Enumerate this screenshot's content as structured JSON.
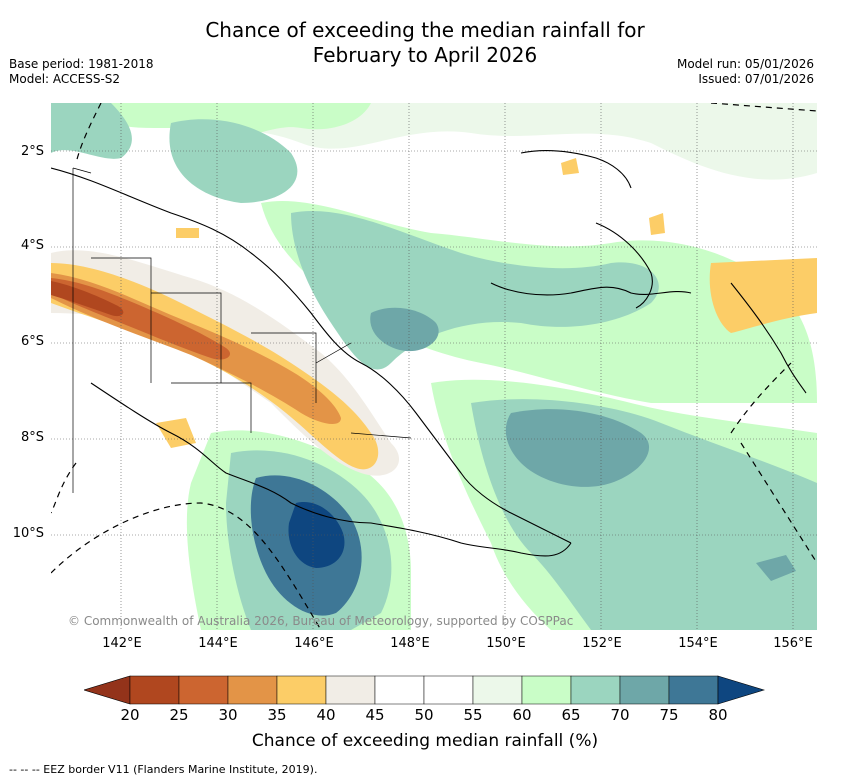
{
  "header": {
    "title_line1": "Chance of exceeding the median rainfall for",
    "title_line2": "February to April 2026",
    "base_period": "Base period: 1981-2018",
    "model": "Model: ACCESS-S2",
    "model_run": "Model run: 05/01/2026",
    "issued": "Issued: 07/01/2026"
  },
  "map": {
    "lat_labels": [
      "2°S",
      "4°S",
      "6°S",
      "8°S",
      "10°S"
    ],
    "lon_labels": [
      "142°E",
      "144°E",
      "146°E",
      "148°E",
      "150°E",
      "152°E",
      "154°E",
      "156°E"
    ],
    "copyright": "© Commonwealth of Australia 2026, Bureau of Meteorology, supported by COSPPac"
  },
  "colorbar": {
    "ticks": [
      "20",
      "25",
      "30",
      "35",
      "40",
      "45",
      "50",
      "55",
      "60",
      "65",
      "70",
      "75",
      "80"
    ],
    "colors": [
      "#b0471f",
      "#cc6530",
      "#e39447",
      "#fccd67",
      "#f1ede6",
      "#ffffff",
      "#ffffff",
      "#ecf8ea",
      "#c9fdc7",
      "#9bd5bf",
      "#6ea7a8",
      "#3e7796"
    ],
    "low_extension_color": "#93331a",
    "high_extension_color": "#0e4680",
    "label": "Chance of exceeding median rainfall (%)"
  },
  "footer": {
    "legend": "--  --  -- EEZ border V11 (Flanders Marine Institute, 2019)."
  }
}
